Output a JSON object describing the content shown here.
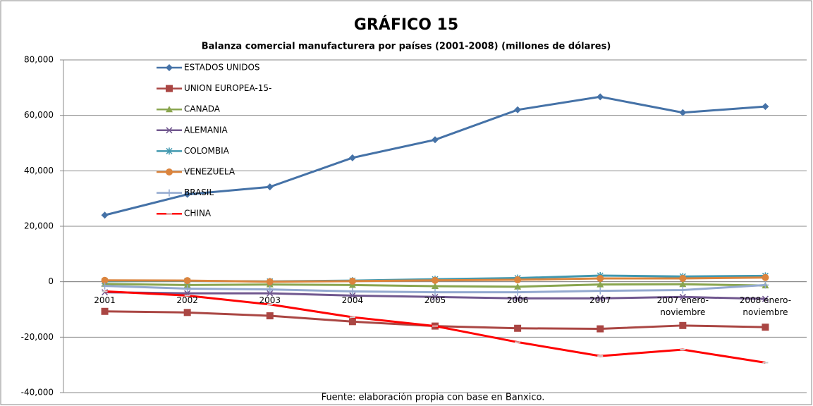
{
  "chart_data": {
    "type": "line",
    "title": "GRÁFICO 15",
    "subtitle": "Balanza comercial manufacturera por países (2001-2008) (millones de dólares)",
    "source": "Fuente: elaboración propia con base en Banxico.",
    "categories": [
      "2001",
      "2002",
      "2003",
      "2004",
      "2005",
      "2006",
      "2007",
      "2007 enero-noviembre",
      "2008 enero-noviembre"
    ],
    "series": [
      {
        "name": "ESTADOS UNIDOS",
        "color": "#4572a7",
        "marker": "diamond",
        "values": [
          24000,
          31500,
          34200,
          44700,
          51200,
          62000,
          66700,
          61000,
          63200
        ]
      },
      {
        "name": "UNION EUROPEA-15-",
        "color": "#aa4643",
        "marker": "square",
        "values": [
          -10700,
          -11100,
          -12300,
          -14400,
          -16000,
          -16800,
          -17000,
          -15800,
          -16400
        ]
      },
      {
        "name": "CANADA",
        "color": "#89a54e",
        "marker": "triangle",
        "values": [
          -800,
          -1200,
          -1000,
          -1200,
          -1600,
          -1800,
          -1000,
          -900,
          -1400
        ]
      },
      {
        "name": "ALEMANIA",
        "color": "#71588f",
        "marker": "x",
        "values": [
          -3800,
          -4200,
          -4200,
          -5000,
          -5500,
          -6000,
          -6000,
          -5500,
          -6200
        ]
      },
      {
        "name": "COLOMBIA",
        "color": "#4198af",
        "marker": "star",
        "values": [
          200,
          300,
          100,
          400,
          900,
          1300,
          2200,
          1900,
          2100
        ]
      },
      {
        "name": "VENEZUELA",
        "color": "#db843d",
        "marker": "circle",
        "values": [
          500,
          400,
          0,
          200,
          500,
          700,
          1200,
          1200,
          1500
        ]
      },
      {
        "name": "BRASIL",
        "color": "#93a9cf",
        "marker": "plus",
        "values": [
          -1500,
          -2500,
          -2800,
          -3500,
          -3800,
          -3800,
          -3300,
          -3000,
          -1200
        ]
      },
      {
        "name": "CHINA",
        "color": "#ff0000",
        "marker": "dash",
        "values": [
          -3500,
          -5000,
          -8200,
          -12800,
          -16000,
          -21800,
          -26800,
          -24500,
          -29200
        ]
      }
    ],
    "ylim": [
      -40000,
      80000
    ],
    "yticks": [
      {
        "value": -40000,
        "label": "-40,000"
      },
      {
        "value": -20000,
        "label": "-20,000"
      },
      0,
      {
        "value": 20000,
        "label": "20,000"
      },
      {
        "value": 40000,
        "label": "40,000"
      },
      {
        "value": 60000,
        "label": "60,000"
      },
      {
        "value": 80000,
        "label": "80,000"
      }
    ],
    "grid": true
  }
}
